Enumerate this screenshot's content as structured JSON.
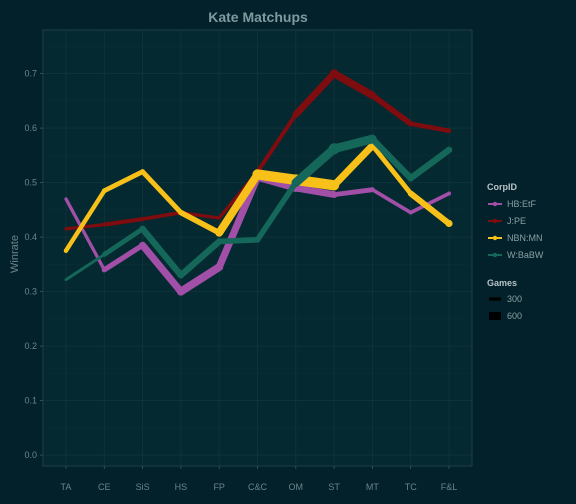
{
  "chart_data": {
    "type": "line",
    "title": "Kate Matchups",
    "xlabel": "",
    "ylabel": "Winrate",
    "categories": [
      "TA",
      "CE",
      "SiS",
      "HS",
      "FP",
      "C&C",
      "OM",
      "ST",
      "MT",
      "TC",
      "F&L"
    ],
    "ylim": [
      -0.02,
      0.78
    ],
    "yticks": [
      0.0,
      0.1,
      0.2,
      0.3,
      0.4,
      0.5,
      0.6,
      0.7
    ],
    "ytick_labels": [
      "0.0",
      "0.1",
      "0.2",
      "0.3",
      "0.4",
      "0.5",
      "0.6",
      "0.7"
    ],
    "grid": true,
    "legend_position": "right",
    "series": [
      {
        "name": "HB:EtF",
        "color": "#a24fa8",
        "values": [
          0.47,
          0.34,
          0.385,
          0.3,
          0.345,
          0.51,
          0.49,
          0.478,
          0.487,
          0.445,
          0.48
        ],
        "games": [
          250,
          350,
          500,
          600,
          600,
          500,
          600,
          450,
          350,
          300,
          350
        ]
      },
      {
        "name": "J:PE",
        "color": "#7f0c0f",
        "values": [
          0.415,
          0.423,
          0.433,
          0.445,
          0.435,
          0.52,
          0.625,
          0.7,
          0.66,
          0.608,
          0.595
        ],
        "games": [
          250,
          350,
          350,
          300,
          300,
          300,
          400,
          650,
          500,
          400,
          350
        ]
      },
      {
        "name": "NBN:MN",
        "color": "#f7c11a",
        "values": [
          0.375,
          0.485,
          0.52,
          0.445,
          0.408,
          0.515,
          0.505,
          0.495,
          0.568,
          0.48,
          0.425
        ],
        "games": [
          350,
          400,
          400,
          400,
          500,
          700,
          800,
          700,
          400,
          400,
          550
        ]
      },
      {
        "name": "W:BaBW",
        "color": "#146759",
        "values": [
          0.322,
          0.368,
          0.415,
          0.33,
          0.392,
          0.395,
          0.5,
          0.562,
          0.58,
          0.508,
          0.56
        ],
        "games": [
          250,
          300,
          500,
          500,
          500,
          400,
          500,
          800,
          500,
          500,
          500
        ]
      }
    ],
    "legend": {
      "color_title": "CorpID",
      "size_title": "Games",
      "sizes": [
        300,
        600
      ],
      "size_labels": [
        "300",
        "600"
      ]
    }
  }
}
